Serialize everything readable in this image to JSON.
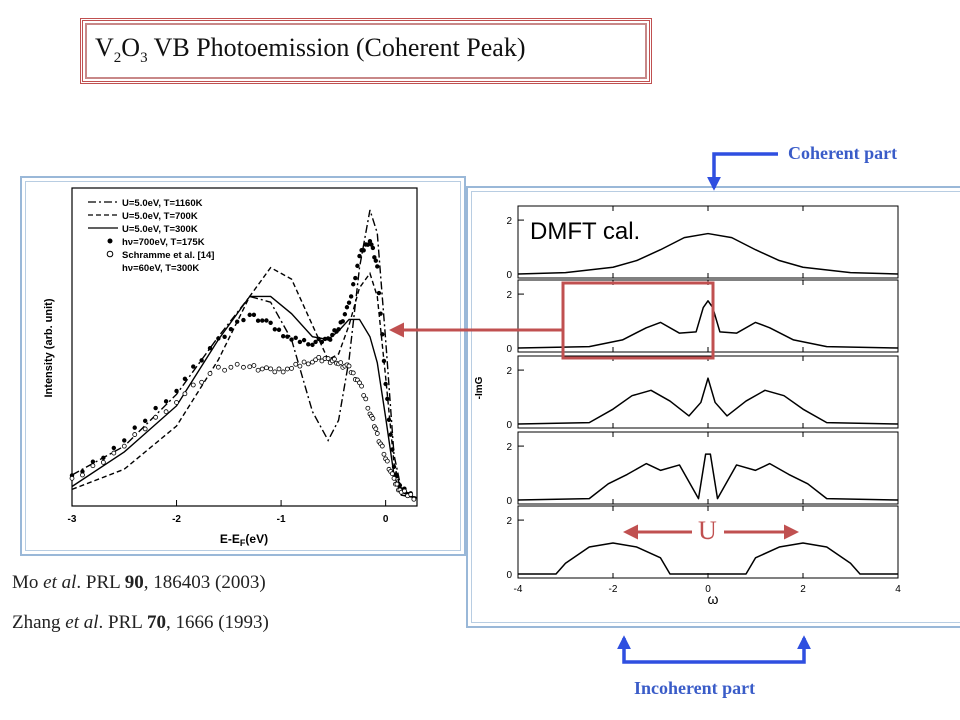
{
  "slide": {
    "title_main": "V",
    "title_sub1": "2",
    "title_mid": "O",
    "title_sub2": "3",
    "title_rest": " VB Photoemission (Coherent Peak)"
  },
  "references": [
    {
      "author": "Mo",
      "etal": "et al",
      "journal": ". PRL ",
      "volume": "90",
      "rest": ", 186403 (2003)"
    },
    {
      "author": "Zhang",
      "etal": "et al",
      "journal": ". PRL ",
      "volume": "70",
      "rest": ", 1666 (1993)"
    }
  ],
  "annotations": {
    "coherent_part": "Coherent part",
    "incoherent_part": "Incoherent part",
    "dmft_label": "DMFT cal.",
    "u_label": "U"
  },
  "colors": {
    "arrow_blue": "#2f4fe0",
    "arrow_red": "#c05050",
    "label_blue": "#3a5cc8"
  },
  "chart_data": [
    {
      "type": "line",
      "xlabel": "E-E_F(eV)",
      "xlabel_main": "E-E",
      "xlabel_sub": "F",
      "xlabel_tail": "(eV)",
      "ylabel": "Intensity (arb. unit)",
      "xlim": [
        -3.0,
        0.3
      ],
      "x_ticks": [
        "-3",
        "-2",
        "-1",
        "0"
      ],
      "legend_placement": "top-left",
      "legend": [
        {
          "name": "U=5.0eV, T=1160K",
          "style": "dash-dot"
        },
        {
          "name": "U=5.0eV, T=700K",
          "style": "dashed"
        },
        {
          "name": "U=5.0eV, T=300K",
          "style": "solid"
        },
        {
          "name": "hν=700eV, T=175K",
          "style": "filled-circle"
        },
        {
          "name": "Schramme et al. [14]",
          "style": "open-circle"
        },
        {
          "name": "hν=60eV, T=300K",
          "style": "none"
        }
      ],
      "series": [
        {
          "x": [
            -3.0,
            -2.5,
            -2.0,
            -1.6,
            -1.3,
            -1.1,
            -0.9,
            -0.7,
            -0.55,
            -0.45,
            -0.35,
            -0.25,
            -0.15,
            -0.08,
            0.0,
            0.08,
            0.15,
            0.3
          ],
          "values": [
            0.08,
            0.18,
            0.36,
            0.56,
            0.7,
            0.68,
            0.55,
            0.3,
            0.2,
            0.27,
            0.48,
            0.8,
            1.0,
            0.92,
            0.55,
            0.15,
            0.03,
            0.0
          ]
        },
        {
          "x": [
            -3.0,
            -2.5,
            -2.0,
            -1.6,
            -1.3,
            -1.1,
            -0.9,
            -0.7,
            -0.55,
            -0.45,
            -0.35,
            -0.25,
            -0.15,
            -0.08,
            0.0,
            0.08,
            0.15,
            0.3
          ],
          "values": [
            0.03,
            0.1,
            0.25,
            0.48,
            0.7,
            0.8,
            0.76,
            0.6,
            0.48,
            0.5,
            0.6,
            0.73,
            0.78,
            0.7,
            0.42,
            0.12,
            0.02,
            0.0
          ]
        },
        {
          "x": [
            -3.0,
            -2.5,
            -2.0,
            -1.6,
            -1.3,
            -1.1,
            -0.9,
            -0.7,
            -0.55,
            -0.45,
            -0.35,
            -0.25,
            -0.15,
            -0.08,
            0.0,
            0.08,
            0.15,
            0.3
          ],
          "values": [
            0.04,
            0.16,
            0.32,
            0.55,
            0.7,
            0.7,
            0.64,
            0.56,
            0.55,
            0.58,
            0.62,
            0.62,
            0.56,
            0.47,
            0.28,
            0.08,
            0.01,
            0.0
          ]
        },
        {
          "x": [
            -3.0,
            -2.5,
            -2.0,
            -1.6,
            -1.3,
            -1.1,
            -0.9,
            -0.7,
            -0.55,
            -0.45,
            -0.35,
            -0.25,
            -0.15,
            -0.08,
            0.0,
            0.08,
            0.15,
            0.3
          ],
          "values": [
            0.07,
            0.2,
            0.38,
            0.55,
            0.64,
            0.6,
            0.55,
            0.54,
            0.55,
            0.59,
            0.67,
            0.84,
            0.9,
            0.8,
            0.4,
            0.1,
            0.03,
            0.0
          ]
        },
        {
          "x": [
            -3.0,
            -2.5,
            -2.0,
            -1.6,
            -1.3,
            -1.1,
            -0.9,
            -0.7,
            -0.55,
            -0.45,
            -0.35,
            -0.25,
            -0.15,
            -0.08,
            0.0,
            0.08,
            0.15,
            0.3
          ],
          "values": [
            0.06,
            0.18,
            0.34,
            0.45,
            0.46,
            0.44,
            0.45,
            0.48,
            0.48,
            0.47,
            0.45,
            0.4,
            0.3,
            0.22,
            0.14,
            0.06,
            0.02,
            0.0
          ]
        }
      ]
    },
    {
      "type": "line",
      "title": "",
      "xlabel": "ω",
      "ylabel": "-ImG",
      "xlim": [
        -4,
        4
      ],
      "x_ticks": [
        "-4",
        "-2",
        "0",
        "2",
        "4"
      ],
      "y_ticks": [
        "0",
        "2"
      ],
      "panels": [
        {
          "x": [
            -4,
            -3,
            -2,
            -1.5,
            -1,
            -0.5,
            0,
            0.5,
            1,
            1.5,
            2,
            3,
            4
          ],
          "values": [
            0.0,
            0.05,
            0.25,
            0.5,
            0.9,
            1.35,
            1.5,
            1.35,
            0.9,
            0.5,
            0.25,
            0.05,
            0.0
          ]
        },
        {
          "x": [
            -4,
            -2.5,
            -1.8,
            -1.3,
            -1.0,
            -0.6,
            -0.25,
            -0.1,
            0.0,
            0.1,
            0.25,
            0.6,
            1.0,
            1.3,
            1.8,
            2.5,
            4
          ],
          "values": [
            0.0,
            0.05,
            0.3,
            0.75,
            0.95,
            0.55,
            0.6,
            1.5,
            1.75,
            1.5,
            0.6,
            0.55,
            0.95,
            0.75,
            0.3,
            0.05,
            0.0
          ]
        },
        {
          "x": [
            -4,
            -2.5,
            -2.0,
            -1.6,
            -1.2,
            -0.8,
            -0.4,
            -0.15,
            0.0,
            0.15,
            0.4,
            0.8,
            1.2,
            1.6,
            2.0,
            2.5,
            4
          ],
          "values": [
            0.0,
            0.05,
            0.55,
            1.05,
            1.25,
            0.85,
            0.3,
            0.8,
            1.7,
            0.8,
            0.3,
            0.85,
            1.25,
            1.05,
            0.55,
            0.05,
            0.0
          ]
        },
        {
          "x": [
            -4,
            -2.5,
            -2.1,
            -1.7,
            -1.3,
            -1.0,
            -0.6,
            -0.2,
            -0.05,
            0.0,
            0.05,
            0.2,
            0.6,
            1.0,
            1.3,
            1.7,
            2.1,
            2.5,
            4
          ],
          "values": [
            0.0,
            0.05,
            0.6,
            0.95,
            1.35,
            1.1,
            1.3,
            0.05,
            1.7,
            1.7,
            1.7,
            0.05,
            1.3,
            1.1,
            1.35,
            0.95,
            0.6,
            0.05,
            0.0
          ]
        },
        {
          "x": [
            -4,
            -3.2,
            -3.0,
            -2.5,
            -2.0,
            -1.5,
            -1.0,
            -0.8,
            0.8,
            1.0,
            1.5,
            2.0,
            2.5,
            3.0,
            3.2,
            4
          ],
          "values": [
            0.0,
            0.0,
            0.4,
            1.0,
            1.15,
            1.0,
            0.6,
            0.0,
            0.0,
            0.6,
            1.0,
            1.15,
            1.0,
            0.4,
            0.0,
            0.0
          ]
        }
      ]
    }
  ]
}
